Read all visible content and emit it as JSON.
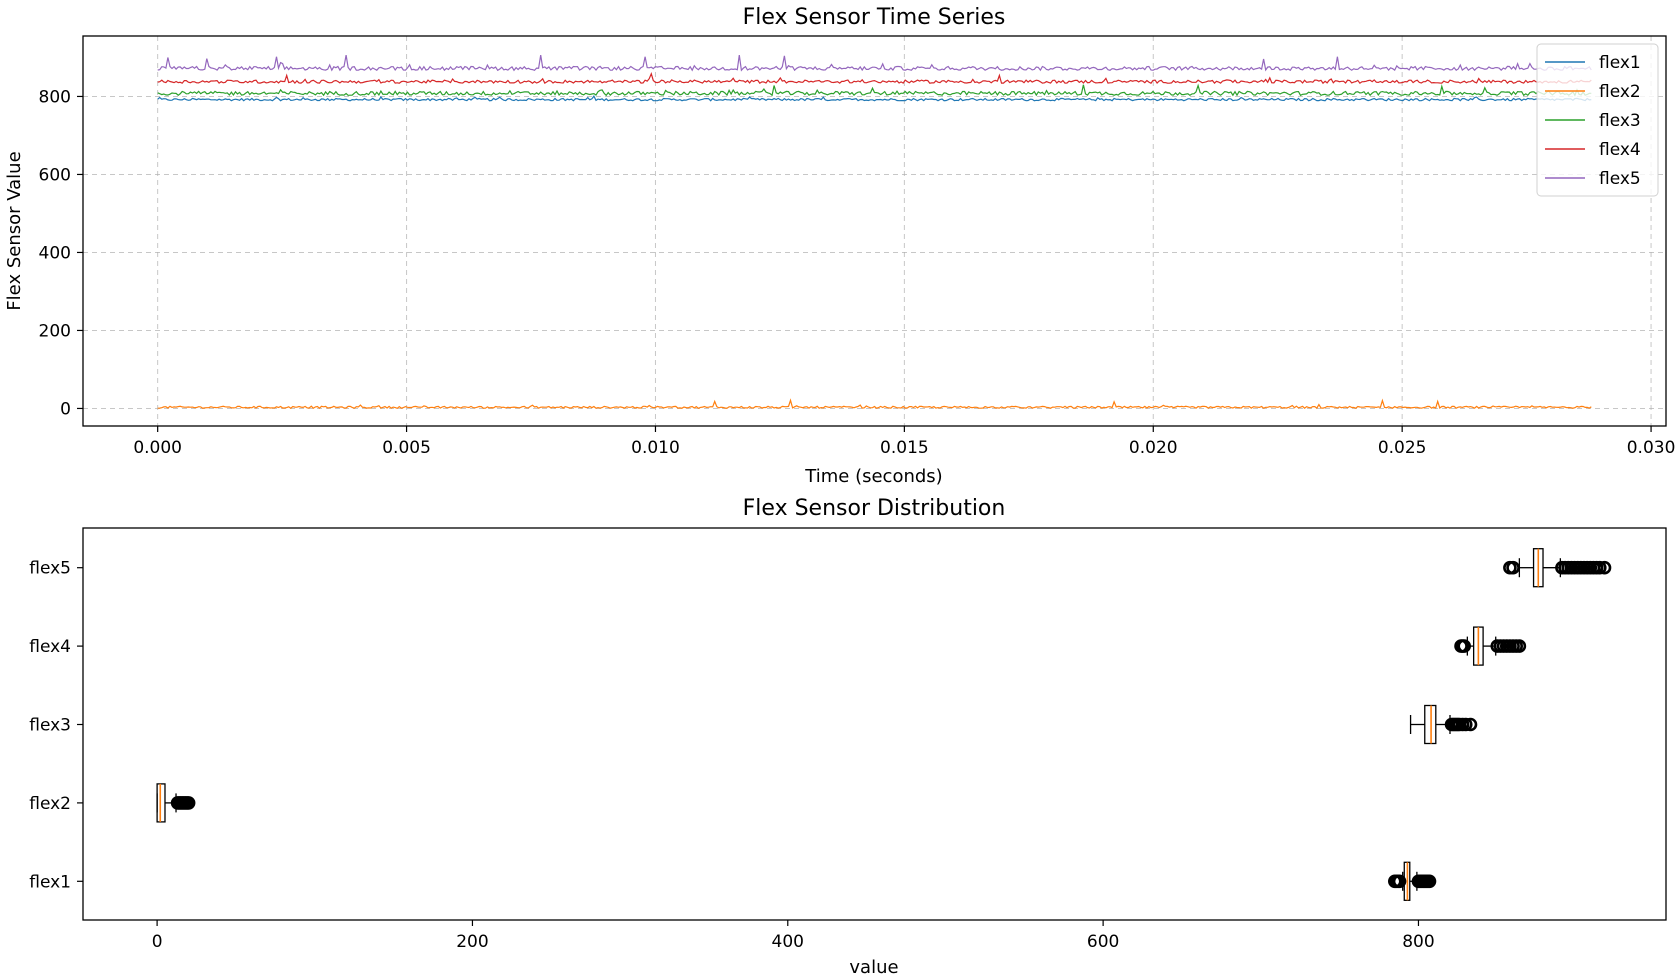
{
  "chart_data": [
    {
      "type": "line",
      "title": "Flex Sensor Time Series",
      "xlabel": "Time (seconds)",
      "ylabel": "Flex Sensor Value",
      "xlim": [
        -0.0015,
        0.0303
      ],
      "ylim": [
        -45,
        955
      ],
      "xticks": [
        "0.000",
        "0.005",
        "0.010",
        "0.015",
        "0.020",
        "0.025",
        "0.030"
      ],
      "yticks": [
        "0",
        "200",
        "400",
        "600",
        "800"
      ],
      "grid": true,
      "legend_position": "top-right",
      "x_start": 0.0,
      "x_end": 0.0288,
      "series": [
        {
          "name": "flex1",
          "color": "#1f77b4",
          "mean": 792,
          "noise": 3,
          "spikes": []
        },
        {
          "name": "flex2",
          "color": "#ff7f0e",
          "mean": 3,
          "noise": 2.5,
          "spikes": [
            [
              0.0112,
              15
            ],
            [
              0.0127,
              18
            ],
            [
              0.0192,
              14
            ],
            [
              0.0246,
              17
            ],
            [
              0.0257,
              15
            ]
          ]
        },
        {
          "name": "flex3",
          "color": "#2ca02c",
          "mean": 808,
          "noise": 5,
          "spikes": [
            [
              0.0124,
              20
            ],
            [
              0.0186,
              22
            ],
            [
              0.0209,
              20
            ],
            [
              0.0258,
              18
            ]
          ]
        },
        {
          "name": "flex4",
          "color": "#d62728",
          "mean": 838,
          "noise": 4,
          "spikes": [
            [
              0.0026,
              16
            ],
            [
              0.0099,
              20
            ],
            [
              0.0169,
              16
            ]
          ]
        },
        {
          "name": "flex5",
          "color": "#9467bd",
          "mean": 872,
          "noise": 5,
          "spikes": [
            [
              0.0002,
              28
            ],
            [
              0.001,
              25
            ],
            [
              0.0024,
              30
            ],
            [
              0.0038,
              34
            ],
            [
              0.0077,
              34
            ],
            [
              0.0098,
              30
            ],
            [
              0.0117,
              34
            ],
            [
              0.0126,
              32
            ],
            [
              0.0222,
              24
            ],
            [
              0.0237,
              30
            ]
          ]
        }
      ]
    },
    {
      "type": "box",
      "title": "Flex Sensor Distribution",
      "xlabel": "value",
      "xlim": [
        -47,
        957
      ],
      "xticks": [
        "0",
        "200",
        "400",
        "600",
        "800"
      ],
      "categories": [
        "flex1",
        "flex2",
        "flex3",
        "flex4",
        "flex5"
      ],
      "boxes": [
        {
          "name": "flex1",
          "whislo": 790,
          "q1": 791,
          "med": 793,
          "q3": 794.5,
          "whishi": 799,
          "fliers": [
            785,
            786,
            787,
            788,
            800,
            801,
            802,
            803,
            804,
            805,
            806,
            807
          ]
        },
        {
          "name": "flex2",
          "whislo": 0,
          "q1": 0,
          "med": 2,
          "q3": 5,
          "whishi": 12,
          "fliers": [
            13,
            14,
            15,
            16,
            17,
            18,
            19,
            20
          ]
        },
        {
          "name": "flex3",
          "whislo": 795,
          "q1": 804,
          "med": 808,
          "q3": 811,
          "whishi": 820,
          "fliers": [
            821,
            822,
            823,
            824,
            825,
            826,
            828,
            830,
            833
          ]
        },
        {
          "name": "flex4",
          "whislo": 831,
          "q1": 835,
          "med": 838,
          "q3": 841,
          "whishi": 849,
          "fliers": [
            827,
            828,
            829,
            850,
            852,
            854,
            856,
            858,
            860,
            862,
            864
          ]
        },
        {
          "name": "flex5",
          "whislo": 864,
          "q1": 873,
          "med": 876,
          "q3": 879,
          "whishi": 890,
          "fliers": [
            858,
            860,
            891,
            893,
            895,
            897,
            899,
            901,
            903,
            905,
            907,
            909,
            911,
            913,
            915,
            918
          ]
        }
      ]
    }
  ]
}
